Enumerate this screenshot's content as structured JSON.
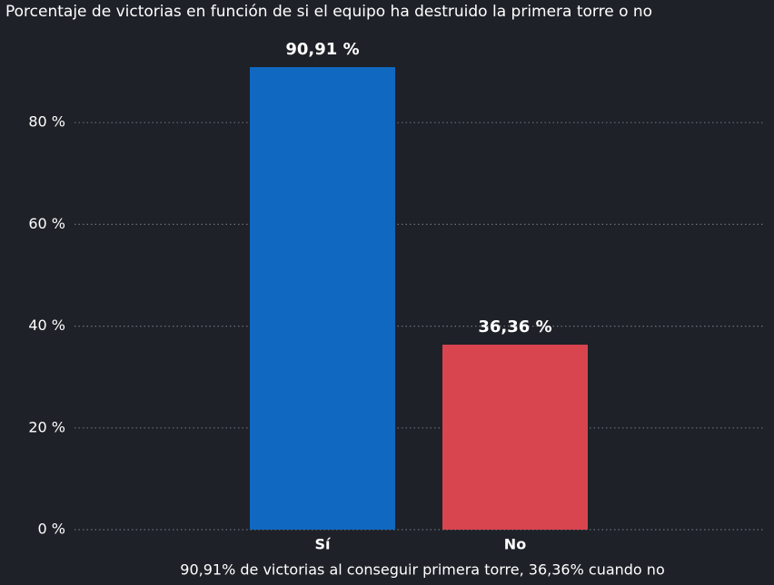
{
  "chart_data": {
    "type": "bar",
    "title": "Porcentaje de victorias en función de si el equipo ha destruido la primera torre o no",
    "categories": [
      "Sí",
      "No"
    ],
    "values": [
      90.91,
      36.36
    ],
    "value_labels": [
      "90,91 %",
      "36,36 %"
    ],
    "colors": [
      "#1068c0",
      "#d9454f"
    ],
    "ylim": [
      0,
      100
    ],
    "yticks": [
      {
        "value": 0,
        "label": "0 %"
      },
      {
        "value": 20,
        "label": "20 %"
      },
      {
        "value": 40,
        "label": "40 %"
      },
      {
        "value": 60,
        "label": "60 %"
      },
      {
        "value": 80,
        "label": "80 %"
      }
    ],
    "grid": true,
    "annotation": "90,91% de victorias al conseguir primera torre, 36,36% cuando no"
  }
}
